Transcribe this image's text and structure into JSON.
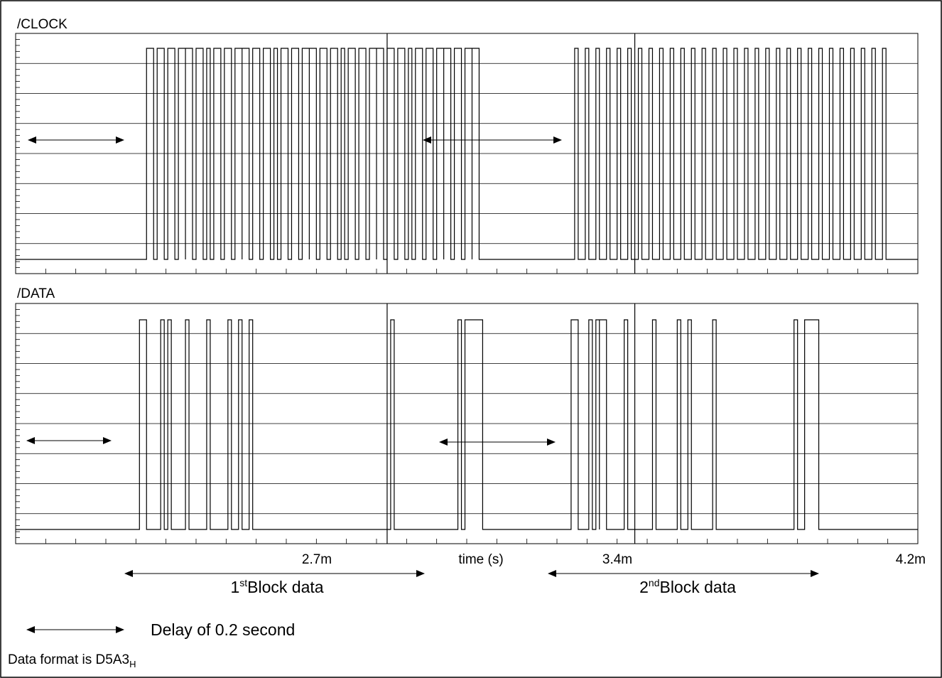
{
  "chart_data": {
    "type": "line",
    "panels": [
      {
        "label": "/CLOCK",
        "series": [
          {
            "transitions": [
              [
                2.02,
                1
              ],
              [
                2.04,
                0
              ],
              [
                2.05,
                1
              ],
              [
                2.07,
                0
              ],
              [
                2.08,
                1
              ],
              [
                2.1,
                0
              ],
              [
                2.11,
                1
              ],
              [
                2.13,
                0
              ],
              [
                2.13,
                1
              ],
              [
                2.15,
                0
              ],
              [
                2.16,
                1
              ],
              [
                2.18,
                0
              ],
              [
                2.19,
                1
              ],
              [
                2.2,
                0
              ],
              [
                2.21,
                1
              ],
              [
                2.23,
                0
              ],
              [
                2.24,
                1
              ],
              [
                2.26,
                0
              ],
              [
                2.27,
                1
              ],
              [
                2.29,
                0
              ],
              [
                2.29,
                1
              ],
              [
                2.31,
                0
              ],
              [
                2.32,
                1
              ],
              [
                2.34,
                0
              ],
              [
                2.35,
                1
              ],
              [
                2.37,
                0
              ],
              [
                2.38,
                1
              ],
              [
                2.39,
                0
              ],
              [
                2.4,
                1
              ],
              [
                2.42,
                0
              ],
              [
                2.43,
                1
              ],
              [
                2.45,
                0
              ],
              [
                2.46,
                1
              ],
              [
                2.48,
                0
              ],
              [
                2.48,
                1
              ],
              [
                2.5,
                0
              ],
              [
                2.51,
                1
              ],
              [
                2.53,
                0
              ],
              [
                2.54,
                1
              ],
              [
                2.56,
                0
              ],
              [
                2.57,
                1
              ],
              [
                2.58,
                0
              ],
              [
                2.59,
                1
              ],
              [
                2.61,
                0
              ],
              [
                2.62,
                1
              ],
              [
                2.64,
                0
              ],
              [
                2.65,
                1
              ],
              [
                2.67,
                0
              ],
              [
                2.67,
                1
              ],
              [
                2.69,
                0
              ],
              [
                2.7,
                1
              ],
              [
                2.72,
                0
              ],
              [
                2.73,
                1
              ],
              [
                2.75,
                0
              ],
              [
                2.76,
                1
              ],
              [
                2.77,
                0
              ],
              [
                2.78,
                1
              ],
              [
                2.8,
                0
              ],
              [
                2.81,
                1
              ],
              [
                2.83,
                0
              ],
              [
                2.84,
                1
              ],
              [
                2.86,
                0
              ],
              [
                2.86,
                1
              ],
              [
                2.88,
                0
              ],
              [
                2.89,
                1
              ],
              [
                2.91,
                0
              ],
              [
                2.92,
                1
              ],
              [
                2.94,
                0
              ],
              [
                2.94,
                1
              ],
              [
                2.96,
                0
              ],
              [
                3.23,
                1
              ],
              [
                3.24,
                0
              ],
              [
                3.26,
                1
              ],
              [
                3.27,
                0
              ],
              [
                3.29,
                1
              ],
              [
                3.3,
                0
              ],
              [
                3.32,
                1
              ],
              [
                3.33,
                0
              ],
              [
                3.35,
                1
              ],
              [
                3.36,
                0
              ],
              [
                3.38,
                1
              ],
              [
                3.39,
                0
              ],
              [
                3.41,
                1
              ],
              [
                3.42,
                0
              ],
              [
                3.44,
                1
              ],
              [
                3.45,
                0
              ],
              [
                3.47,
                1
              ],
              [
                3.48,
                0
              ],
              [
                3.5,
                1
              ],
              [
                3.51,
                0
              ],
              [
                3.53,
                1
              ],
              [
                3.54,
                0
              ],
              [
                3.56,
                1
              ],
              [
                3.57,
                0
              ],
              [
                3.59,
                1
              ],
              [
                3.6,
                0
              ],
              [
                3.62,
                1
              ],
              [
                3.63,
                0
              ],
              [
                3.65,
                1
              ],
              [
                3.66,
                0
              ],
              [
                3.68,
                1
              ],
              [
                3.69,
                0
              ],
              [
                3.71,
                1
              ],
              [
                3.72,
                0
              ],
              [
                3.74,
                1
              ],
              [
                3.75,
                0
              ],
              [
                3.77,
                1
              ],
              [
                3.78,
                0
              ],
              [
                3.8,
                1
              ],
              [
                3.81,
                0
              ],
              [
                3.83,
                1
              ],
              [
                3.84,
                0
              ],
              [
                3.86,
                1
              ],
              [
                3.87,
                0
              ],
              [
                3.89,
                1
              ],
              [
                3.9,
                0
              ],
              [
                3.92,
                1
              ],
              [
                3.93,
                0
              ],
              [
                3.95,
                1
              ],
              [
                3.96,
                0
              ],
              [
                3.98,
                1
              ],
              [
                3.99,
                0
              ],
              [
                4.01,
                1
              ],
              [
                4.02,
                0
              ],
              [
                4.04,
                1
              ],
              [
                4.05,
                0
              ],
              [
                4.07,
                1
              ],
              [
                4.08,
                0
              ],
              [
                4.1,
                1
              ],
              [
                4.11,
                0
              ]
            ]
          }
        ]
      },
      {
        "label": "/DATA",
        "series": [
          {
            "transitions": [
              [
                2.0,
                1
              ],
              [
                2.02,
                0
              ],
              [
                2.06,
                1
              ],
              [
                2.07,
                0
              ],
              [
                2.08,
                1
              ],
              [
                2.09,
                0
              ],
              [
                2.13,
                1
              ],
              [
                2.14,
                0
              ],
              [
                2.19,
                1
              ],
              [
                2.2,
                0
              ],
              [
                2.25,
                1
              ],
              [
                2.26,
                0
              ],
              [
                2.28,
                1
              ],
              [
                2.29,
                0
              ],
              [
                2.31,
                1
              ],
              [
                2.32,
                0
              ],
              [
                2.71,
                1
              ],
              [
                2.72,
                0
              ],
              [
                2.9,
                1
              ],
              [
                2.91,
                0
              ],
              [
                2.92,
                1
              ],
              [
                2.97,
                0
              ],
              [
                3.22,
                1
              ],
              [
                3.24,
                0
              ],
              [
                3.27,
                1
              ],
              [
                3.28,
                0
              ],
              [
                3.29,
                1
              ],
              [
                3.3,
                0
              ],
              [
                3.3,
                1
              ],
              [
                3.32,
                0
              ],
              [
                3.37,
                1
              ],
              [
                3.38,
                0
              ],
              [
                3.45,
                1
              ],
              [
                3.46,
                0
              ],
              [
                3.52,
                1
              ],
              [
                3.53,
                0
              ],
              [
                3.55,
                1
              ],
              [
                3.56,
                0
              ],
              [
                3.62,
                1
              ],
              [
                3.63,
                0
              ],
              [
                3.85,
                1
              ],
              [
                3.86,
                0
              ],
              [
                3.88,
                1
              ],
              [
                3.92,
                0
              ]
            ]
          }
        ]
      }
    ],
    "xlim": [
      1.65,
      4.2
    ],
    "xtick_labels": [
      {
        "x": 2.7,
        "label": "2.7m"
      },
      {
        "x": 3.4,
        "label": "3.4m"
      },
      {
        "x": 4.2,
        "label": "4.2m"
      }
    ],
    "xlabel": "time (s)",
    "marker_lines_x": [
      2.7,
      3.4
    ],
    "annotations": {
      "block1_text": "Block data",
      "block1_ordinal": "1",
      "block1_suffix": "st",
      "block2_text": "Block data",
      "block2_ordinal": "2",
      "block2_suffix": "nd",
      "legend_text": "Delay of 0.2 second",
      "format_text": "Data format is D5A3",
      "format_subscript": "H"
    }
  }
}
